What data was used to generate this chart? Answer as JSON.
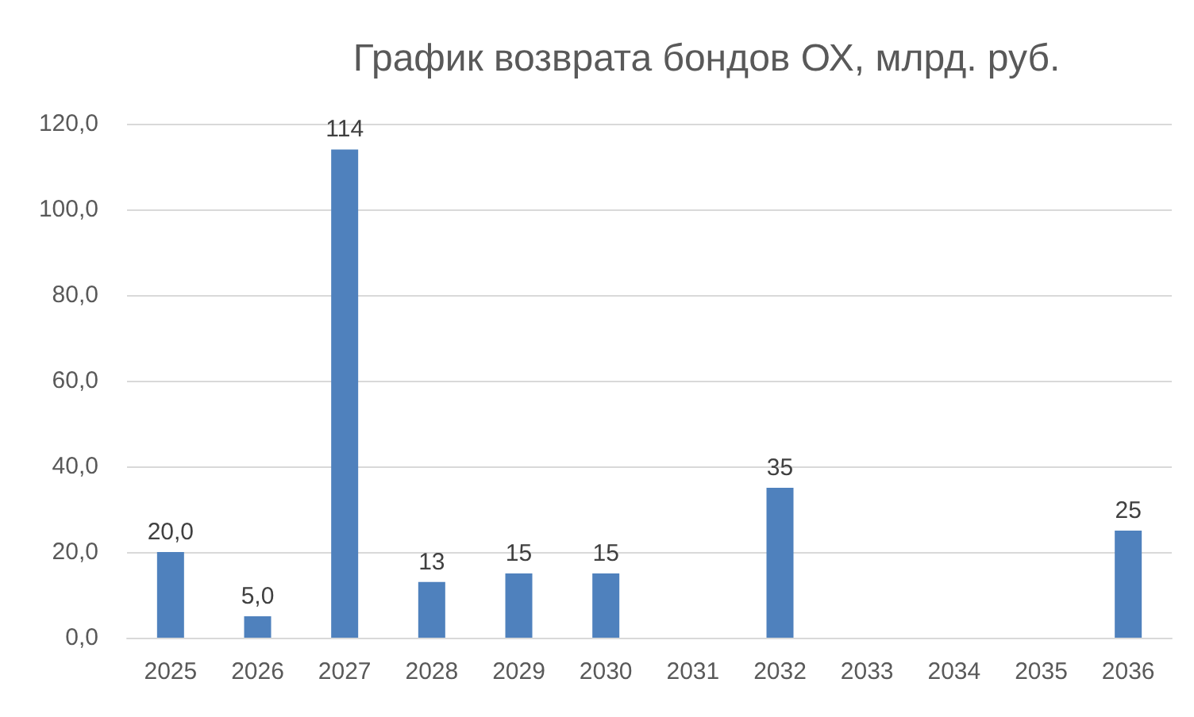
{
  "chart_data": {
    "type": "bar",
    "title": "График возврата бондов ОХ, млрд. руб.",
    "categories": [
      "2025",
      "2026",
      "2027",
      "2028",
      "2029",
      "2030",
      "2031",
      "2032",
      "2033",
      "2034",
      "2035",
      "2036"
    ],
    "values": [
      20,
      5,
      114,
      13,
      15,
      15,
      null,
      35,
      null,
      null,
      null,
      25
    ],
    "value_labels": [
      "20,0",
      "5,0",
      "114",
      "13",
      "15",
      "15",
      null,
      "35",
      null,
      null,
      null,
      "25"
    ],
    "color": "#4f81bd",
    "ylim": [
      0,
      120
    ],
    "yticks": [
      {
        "value": 0,
        "label": "0,0"
      },
      {
        "value": 20,
        "label": "20,0"
      },
      {
        "value": 40,
        "label": "40,0"
      },
      {
        "value": 60,
        "label": "60,0"
      },
      {
        "value": 80,
        "label": "80,0"
      },
      {
        "value": 100,
        "label": "100,0"
      },
      {
        "value": 120,
        "label": "120,0"
      }
    ],
    "grid": "y"
  }
}
